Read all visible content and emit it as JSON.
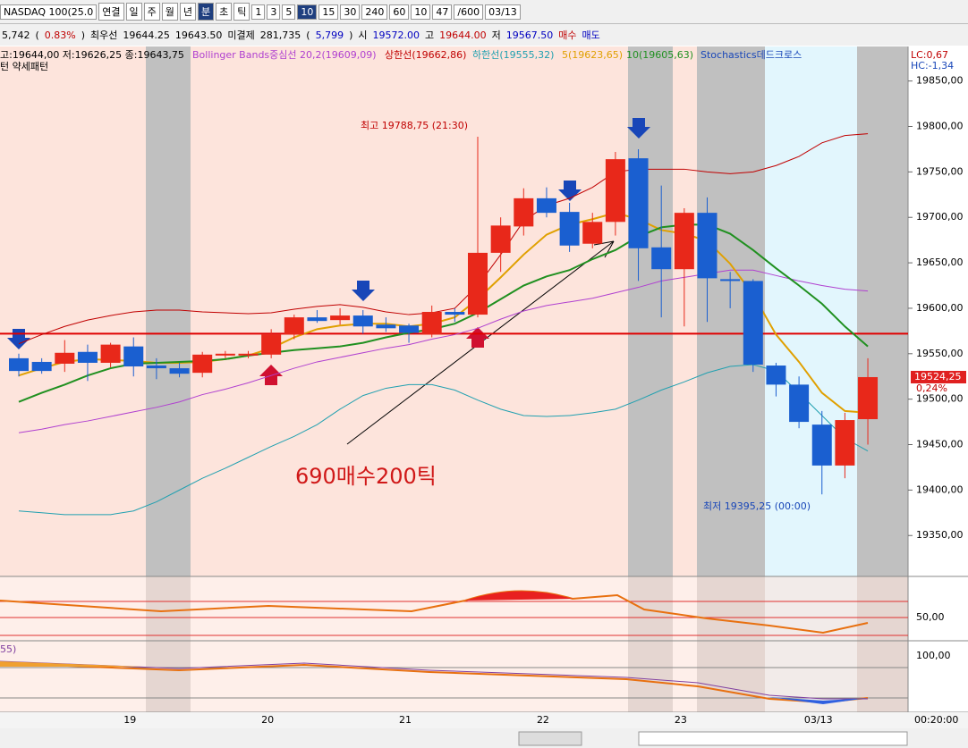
{
  "toolbar": {
    "items": [
      {
        "text": "NASDAQ 100(25.0"
      },
      {
        "text": "연결"
      },
      {
        "text": "일"
      },
      {
        "text": "주"
      },
      {
        "text": "월"
      },
      {
        "text": "년"
      },
      {
        "text": "분",
        "selected": true
      },
      {
        "text": "초"
      },
      {
        "text": "틱"
      },
      {
        "text": "1"
      },
      {
        "text": "3"
      },
      {
        "text": "5"
      },
      {
        "text": "10",
        "selected": true
      },
      {
        "text": "15"
      },
      {
        "text": "30"
      },
      {
        "text": "240"
      },
      {
        "text": "60"
      },
      {
        "text": "10"
      },
      {
        "text": "47"
      },
      {
        "text": "/600"
      },
      {
        "text": "03/13"
      }
    ]
  },
  "quote_bar": {
    "items": [
      {
        "text": "5,742",
        "color": "#000000"
      },
      {
        "text": "(",
        "color": "#000000"
      },
      {
        "text": "0.83%",
        "color": "#c00000"
      },
      {
        "text": ")",
        "color": "#000000"
      },
      {
        "text": "최우선",
        "color": "#000000"
      },
      {
        "text": "19644.25",
        "color": "#000000"
      },
      {
        "text": "19643.50",
        "color": "#000000"
      },
      {
        "text": "미결제",
        "color": "#000000"
      },
      {
        "text": "281,735",
        "color": "#000000"
      },
      {
        "text": "(",
        "color": "#000000"
      },
      {
        "text": "5,799",
        "color": "#0000c0"
      },
      {
        "text": ")",
        "color": "#000000"
      },
      {
        "text": "시",
        "color": "#000000"
      },
      {
        "text": "19572.00",
        "color": "#0000c0"
      },
      {
        "text": "고",
        "color": "#000000"
      },
      {
        "text": "19644.00",
        "color": "#c00000"
      },
      {
        "text": "저",
        "color": "#000000"
      },
      {
        "text": "19567.50",
        "color": "#0000c0"
      },
      {
        "text": "매수",
        "color": "#c00000"
      },
      {
        "text": "매도",
        "color": "#0000c0"
      }
    ]
  },
  "chart_data": {
    "type": "candlestick",
    "ohlc_text": "고:19644,00 저:19626,25 종:19643,75",
    "pattern_text": "턴  약세패턴",
    "signal_text": "Stochastics데드크로스",
    "lc_text": "LC:0,67",
    "hc_text": "HC:-1,34",
    "high_annotation": "최고 19788,75 (21:30)",
    "low_annotation": "최저 19395,25 (00:00)",
    "trade_annotation": "690매수200틱",
    "last_price": {
      "value": 19524.25,
      "label": "19524,25"
    },
    "change_label": "0,24%",
    "hline": 19572,
    "categories": [
      null,
      null,
      null,
      null,
      null,
      "19",
      null,
      null,
      null,
      null,
      null,
      "20",
      null,
      null,
      null,
      null,
      null,
      "21",
      null,
      null,
      null,
      null,
      null,
      "22",
      null,
      null,
      null,
      null,
      null,
      "23",
      null,
      null,
      null,
      null,
      null,
      "03/13",
      null,
      null
    ],
    "time_label": "00:20:00",
    "up_color": "#e8281a",
    "down_color": "#1a5fd0",
    "open": [
      19545,
      19541,
      19539,
      19552,
      19540,
      19558,
      19537,
      19534,
      19529,
      19548,
      19548,
      19549,
      19571,
      19590,
      19587,
      19592,
      19582,
      19581,
      19571,
      19596,
      19593,
      19661,
      19690,
      19721,
      19706,
      19671,
      19695,
      19765,
      19667,
      19643,
      19705,
      19632,
      19630,
      19537,
      19516,
      19472,
      19427,
      19478
    ],
    "high": [
      19550,
      19545,
      19565,
      19560,
      19562,
      19568,
      19545,
      19540,
      19552,
      19553,
      19553,
      19577,
      19593,
      19598,
      19600,
      19598,
      19590,
      19583,
      19603,
      19600,
      19788.75,
      19700,
      19732,
      19733,
      19716,
      19705,
      19772,
      19775,
      19735,
      19710,
      19722,
      19640,
      19632,
      19540,
      19525,
      19487,
      19485,
      19545
    ],
    "low": [
      19525,
      19528,
      19530,
      19520,
      19535,
      19525,
      19522,
      19524,
      19524,
      19545,
      19545,
      19545,
      19566,
      19584,
      19582,
      19572,
      19574,
      19562,
      19568,
      19585,
      19590,
      19640,
      19680,
      19700,
      19662,
      19666,
      19680,
      19630,
      19590,
      19580,
      19585,
      19600,
      19530,
      19503,
      19468,
      19395.25,
      19413,
      19450
    ],
    "close": [
      19531,
      19531,
      19551,
      19540,
      19560,
      19536,
      19534,
      19528,
      19549,
      19550,
      19550,
      19571,
      19590,
      19586,
      19592,
      19580,
      19578,
      19573,
      19596,
      19593,
      19661,
      19691,
      19721,
      19705,
      19669,
      19695,
      19764,
      19666,
      19643,
      19705,
      19633,
      19630,
      19538,
      19516,
      19475,
      19427,
      19477,
      19524.25
    ],
    "series": [
      {
        "name": "Bollinger Bands중심선 20,2(19609,09)",
        "color": "#b040d0",
        "values": [
          19463,
          19467,
          19472,
          19476,
          19481,
          19486,
          19491,
          19497,
          19505,
          19511,
          19518,
          19526,
          19534,
          19541,
          19546,
          19551,
          19556,
          19560,
          19566,
          19571,
          19578,
          19588,
          19597,
          19603,
          19607,
          19611,
          19617,
          19623,
          19630,
          19634,
          19638,
          19642,
          19642,
          19636,
          19630,
          19625,
          19621,
          19619
        ]
      },
      {
        "name": "상한선(19662,86)",
        "color": "#c00000",
        "values": [
          19561,
          19571,
          19580,
          19587,
          19592,
          19596,
          19598,
          19598,
          19596,
          19595,
          19594,
          19595,
          19599,
          19602,
          19604,
          19601,
          19596,
          19593,
          19595,
          19600,
          19625,
          19659,
          19696,
          19713,
          19721,
          19733,
          19750,
          19753,
          19753,
          19753,
          19750,
          19748,
          19750,
          19757,
          19767,
          19782,
          19790,
          19792
        ]
      },
      {
        "name": "하한선(19555,32)",
        "color": "#20a0b0",
        "values": [
          19377,
          19375,
          19373,
          19373,
          19373,
          19377,
          19387,
          19400,
          19413,
          19424,
          19436,
          19448,
          19459,
          19472,
          19489,
          19504,
          19512,
          19516,
          19516,
          19510,
          19499,
          19489,
          19482,
          19481,
          19482,
          19485,
          19489,
          19499,
          19510,
          19519,
          19529,
          19536,
          19538,
          19531,
          19507,
          19482,
          19457,
          19443
        ]
      },
      {
        "name": "5(19623,65)",
        "color": "#e0a000",
        "values": [
          19526,
          19534,
          19541,
          19544,
          19543,
          19542,
          19540,
          19540,
          19541,
          19544,
          19548,
          19556,
          19568,
          19577,
          19581,
          19583,
          19583,
          19580,
          19583,
          19590,
          19610,
          19634,
          19659,
          19681,
          19692,
          19698,
          19705,
          19698,
          19686,
          19682,
          19674,
          19649,
          19615,
          19571,
          19541,
          19507,
          19487,
          19485
        ]
      },
      {
        "name": "10(19605,63)",
        "color": "#209020",
        "values": [
          19497,
          19507,
          19516,
          19526,
          19534,
          19539,
          19540,
          19541,
          19542,
          19544,
          19548,
          19551,
          19554,
          19556,
          19558,
          19562,
          19568,
          19573,
          19577,
          19583,
          19595,
          19610,
          19625,
          19635,
          19642,
          19654,
          19664,
          19679,
          19689,
          19692,
          19692,
          19682,
          19664,
          19644,
          19625,
          19605,
          19580,
          19558
        ]
      }
    ],
    "ylim": [
      19305,
      19888
    ],
    "yticks": [
      {
        "value": 19850,
        "label": "19850,00"
      },
      {
        "value": 19800,
        "label": "19800,00"
      },
      {
        "value": 19750,
        "label": "19750,00"
      },
      {
        "value": 19700,
        "label": "19700,00"
      },
      {
        "value": 19650,
        "label": "19650,00"
      },
      {
        "value": 19600,
        "label": "19600,00"
      },
      {
        "value": 19550,
        "label": "19550,00"
      },
      {
        "value": 19500,
        "label": "19500,00"
      },
      {
        "value": 19450,
        "label": "19450,00"
      },
      {
        "value": 19400,
        "label": "19400,00"
      },
      {
        "value": 19350,
        "label": "19350,00"
      }
    ],
    "panel1_label": "50,00",
    "panel2_label": "100,00",
    "panel2_title": "55)"
  }
}
